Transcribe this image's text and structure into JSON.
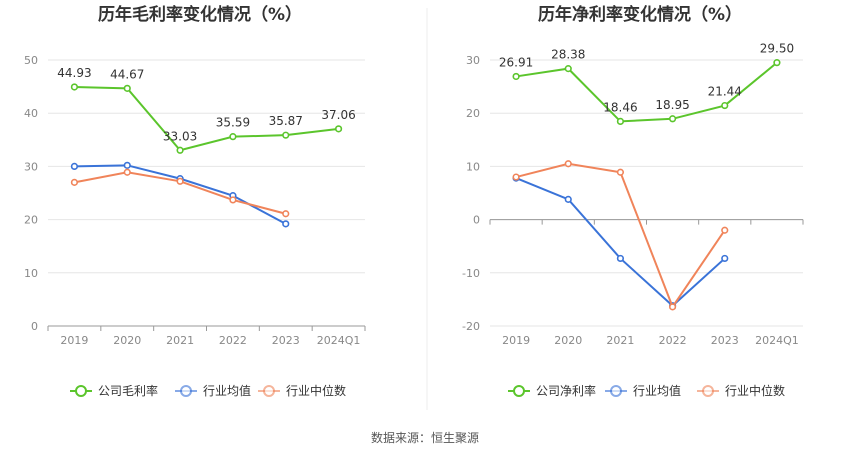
{
  "source_label": "数据来源：恒生聚源",
  "chart_data": [
    {
      "type": "line",
      "title": "历年毛利率变化情况（%）",
      "categories": [
        "2019",
        "2020",
        "2021",
        "2022",
        "2023",
        "2024Q1"
      ],
      "ylim": [
        0,
        50
      ],
      "yticks": [
        0,
        10,
        20,
        30,
        40,
        50
      ],
      "grid": true,
      "legend_position": "bottom",
      "series": [
        {
          "name": "公司毛利率",
          "color": "#5bc52c",
          "values": [
            44.93,
            44.67,
            33.03,
            35.59,
            35.87,
            37.06
          ],
          "labels": [
            "44.93",
            "44.67",
            "33.03",
            "35.59",
            "35.87",
            "37.06"
          ]
        },
        {
          "name": "行业均值",
          "color": "#3a73d8",
          "values": [
            30.0,
            30.2,
            27.7,
            24.5,
            19.2,
            null
          ]
        },
        {
          "name": "行业中位数",
          "color": "#f0845a",
          "values": [
            27.0,
            28.9,
            27.2,
            23.7,
            21.1,
            null
          ]
        }
      ]
    },
    {
      "type": "line",
      "title": "历年净利率变化情况（%）",
      "categories": [
        "2019",
        "2020",
        "2021",
        "2022",
        "2023",
        "2024Q1"
      ],
      "ylim": [
        -20,
        30
      ],
      "yticks": [
        -20,
        -10,
        0,
        10,
        20,
        30
      ],
      "grid": true,
      "legend_position": "bottom",
      "series": [
        {
          "name": "公司净利率",
          "color": "#5bc52c",
          "values": [
            26.91,
            28.38,
            18.46,
            18.95,
            21.44,
            29.5
          ],
          "labels": [
            "26.91",
            "28.38",
            "18.46",
            "18.95",
            "21.44",
            "29.50"
          ]
        },
        {
          "name": "行业均值",
          "color": "#3a73d8",
          "values": [
            7.8,
            3.8,
            -7.3,
            -16.2,
            -7.3,
            null
          ]
        },
        {
          "name": "行业中位数",
          "color": "#f0845a",
          "values": [
            8.0,
            10.5,
            8.9,
            -16.4,
            -2.0,
            null
          ]
        }
      ]
    }
  ]
}
